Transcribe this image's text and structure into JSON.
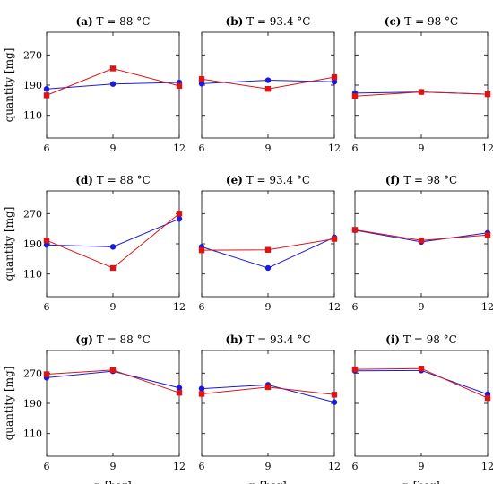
{
  "colors": {
    "series_a": "#1a1adc",
    "series_b": "#dc1414",
    "axis": "#000000"
  },
  "chart_data": [
    {
      "type": "line",
      "panel": "(a)",
      "title": "T = 88 °C",
      "xlabel": "",
      "ylabel": "quantity [mg]",
      "x": [
        6,
        9,
        12
      ],
      "xlim": [
        6,
        12
      ],
      "ylim": [
        50,
        330
      ],
      "y_ticks": [
        110,
        190,
        270
      ],
      "x_ticks": [
        6,
        9,
        12
      ],
      "series": [
        {
          "marker": "circle",
          "color": "#1a1adc",
          "values": [
            180,
            193,
            197
          ]
        },
        {
          "marker": "square",
          "color": "#dc1414",
          "values": [
            163,
            234,
            188
          ]
        }
      ]
    },
    {
      "type": "line",
      "panel": "(b)",
      "title": "T = 93.4 °C",
      "xlabel": "",
      "ylabel": "",
      "x": [
        6,
        9,
        12
      ],
      "xlim": [
        6,
        12
      ],
      "ylim": [
        50,
        330
      ],
      "y_ticks": [
        110,
        190,
        270
      ],
      "x_ticks": [
        6,
        9,
        12
      ],
      "series": [
        {
          "marker": "circle",
          "color": "#1a1adc",
          "values": [
            194,
            203,
            199
          ]
        },
        {
          "marker": "square",
          "color": "#dc1414",
          "values": [
            206,
            180,
            211
          ]
        }
      ]
    },
    {
      "type": "line",
      "panel": "(c)",
      "title": "T = 98 °C",
      "xlabel": "",
      "ylabel": "",
      "x": [
        6,
        9,
        12
      ],
      "xlim": [
        6,
        12
      ],
      "ylim": [
        50,
        330
      ],
      "y_ticks": [
        110,
        190,
        270
      ],
      "x_ticks": [
        6,
        9,
        12
      ],
      "series": [
        {
          "marker": "circle",
          "color": "#1a1adc",
          "values": [
            169,
            172,
            166
          ]
        },
        {
          "marker": "square",
          "color": "#dc1414",
          "values": [
            161,
            172,
            166
          ]
        }
      ]
    },
    {
      "type": "line",
      "panel": "(d)",
      "title": "T = 88 °C",
      "xlabel": "",
      "ylabel": "quantity [mg]",
      "x": [
        6,
        9,
        12
      ],
      "xlim": [
        6,
        12
      ],
      "ylim": [
        50,
        330
      ],
      "y_ticks": [
        110,
        190,
        270
      ],
      "x_ticks": [
        6,
        9,
        12
      ],
      "series": [
        {
          "marker": "circle",
          "color": "#1a1adc",
          "values": [
            187,
            182,
            256
          ]
        },
        {
          "marker": "square",
          "color": "#dc1414",
          "values": [
            199,
            126,
            270
          ]
        }
      ]
    },
    {
      "type": "line",
      "panel": "(e)",
      "title": "T = 93.4 °C",
      "xlabel": "",
      "ylabel": "",
      "x": [
        6,
        9,
        12
      ],
      "xlim": [
        6,
        12
      ],
      "ylim": [
        50,
        330
      ],
      "y_ticks": [
        110,
        190,
        270
      ],
      "x_ticks": [
        6,
        9,
        12
      ],
      "series": [
        {
          "marker": "circle",
          "color": "#1a1adc",
          "values": [
            182,
            126,
            207
          ]
        },
        {
          "marker": "square",
          "color": "#dc1414",
          "values": [
            173,
            174,
            203
          ]
        }
      ]
    },
    {
      "type": "line",
      "panel": "(f)",
      "title": "T = 98 °C",
      "xlabel": "",
      "ylabel": "",
      "x": [
        6,
        9,
        12
      ],
      "xlim": [
        6,
        12
      ],
      "ylim": [
        50,
        330
      ],
      "y_ticks": [
        110,
        190,
        270
      ],
      "x_ticks": [
        6,
        9,
        12
      ],
      "series": [
        {
          "marker": "circle",
          "color": "#1a1adc",
          "values": [
            226,
            195,
            219
          ]
        },
        {
          "marker": "square",
          "color": "#dc1414",
          "values": [
            227,
            199,
            213
          ]
        }
      ]
    },
    {
      "type": "line",
      "panel": "(g)",
      "title": "T = 88 °C",
      "xlabel": "p [bar]",
      "ylabel": "quantity [mg]",
      "x": [
        6,
        9,
        12
      ],
      "xlim": [
        6,
        12
      ],
      "ylim": [
        50,
        330
      ],
      "y_ticks": [
        110,
        190,
        270
      ],
      "x_ticks": [
        6,
        9,
        12
      ],
      "series": [
        {
          "marker": "circle",
          "color": "#1a1adc",
          "values": [
            258,
            275,
            231
          ]
        },
        {
          "marker": "square",
          "color": "#dc1414",
          "values": [
            267,
            278,
            218
          ]
        }
      ]
    },
    {
      "type": "line",
      "panel": "(h)",
      "title": "T = 93.4 °C",
      "xlabel": "p [bar]",
      "ylabel": "",
      "x": [
        6,
        9,
        12
      ],
      "xlim": [
        6,
        12
      ],
      "ylim": [
        50,
        330
      ],
      "y_ticks": [
        110,
        190,
        270
      ],
      "x_ticks": [
        6,
        9,
        12
      ],
      "series": [
        {
          "marker": "circle",
          "color": "#1a1adc",
          "values": [
            229,
            239,
            193
          ]
        },
        {
          "marker": "square",
          "color": "#dc1414",
          "values": [
            215,
            233,
            213
          ]
        }
      ]
    },
    {
      "type": "line",
      "panel": "(i)",
      "title": "T = 98 °C",
      "xlabel": "p [bar]",
      "ylabel": "",
      "x": [
        6,
        9,
        12
      ],
      "xlim": [
        6,
        12
      ],
      "ylim": [
        50,
        330
      ],
      "y_ticks": [
        110,
        190,
        270
      ],
      "x_ticks": [
        6,
        9,
        12
      ],
      "series": [
        {
          "marker": "circle",
          "color": "#1a1adc",
          "values": [
            276,
            277,
            214
          ]
        },
        {
          "marker": "square",
          "color": "#dc1414",
          "values": [
            280,
            282,
            204
          ]
        }
      ]
    }
  ]
}
